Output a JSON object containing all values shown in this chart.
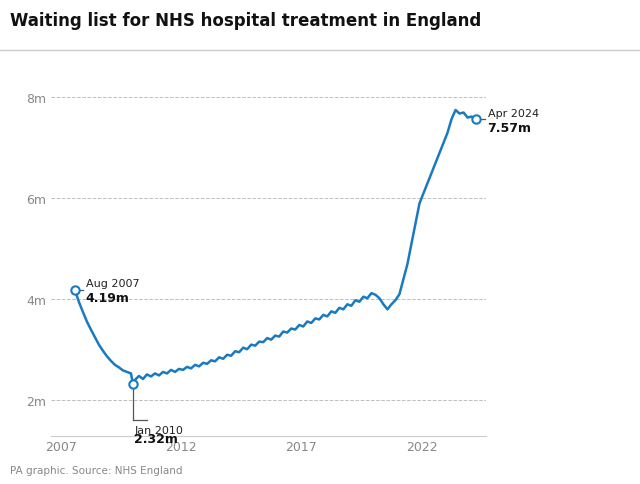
{
  "title": "Waiting list for NHS hospital treatment in England",
  "source": "PA graphic. Source: NHS England",
  "line_color": "#1a7abf",
  "background_color": "#ffffff",
  "grid_color": "#c0c0c0",
  "ylabel_ticks": [
    "2m",
    "4m",
    "6m",
    "8m"
  ],
  "ylabel_values": [
    2000000,
    4000000,
    6000000,
    8000000
  ],
  "ylim": [
    1300000,
    8700000
  ],
  "xlim_start": 2006.6,
  "xlim_end": 2024.7,
  "xticks": [
    2007,
    2012,
    2017,
    2022
  ],
  "ann1_date": "Aug 2007",
  "ann1_val": "4.19m",
  "ann1_x": 2007.583,
  "ann1_y": 4190000,
  "ann2_date": "Jan 2010",
  "ann2_val": "2.32m",
  "ann2_x": 2010.0,
  "ann2_y": 2320000,
  "ann3_date": "Apr 2024",
  "ann3_val": "7.57m",
  "ann3_x": 2024.25,
  "ann3_y": 7570000,
  "data_points": [
    [
      2007.583,
      4190000
    ],
    [
      2007.75,
      3950000
    ],
    [
      2007.917,
      3750000
    ],
    [
      2008.083,
      3560000
    ],
    [
      2008.25,
      3400000
    ],
    [
      2008.417,
      3250000
    ],
    [
      2008.583,
      3100000
    ],
    [
      2008.75,
      2980000
    ],
    [
      2008.917,
      2870000
    ],
    [
      2009.083,
      2780000
    ],
    [
      2009.25,
      2700000
    ],
    [
      2009.417,
      2650000
    ],
    [
      2009.583,
      2590000
    ],
    [
      2009.75,
      2560000
    ],
    [
      2009.917,
      2530000
    ],
    [
      2010.0,
      2320000
    ],
    [
      2010.083,
      2400000
    ],
    [
      2010.25,
      2480000
    ],
    [
      2010.417,
      2420000
    ],
    [
      2010.583,
      2510000
    ],
    [
      2010.75,
      2470000
    ],
    [
      2010.917,
      2530000
    ],
    [
      2011.083,
      2490000
    ],
    [
      2011.25,
      2560000
    ],
    [
      2011.417,
      2530000
    ],
    [
      2011.583,
      2600000
    ],
    [
      2011.75,
      2560000
    ],
    [
      2011.917,
      2620000
    ],
    [
      2012.083,
      2600000
    ],
    [
      2012.25,
      2660000
    ],
    [
      2012.417,
      2630000
    ],
    [
      2012.583,
      2700000
    ],
    [
      2012.75,
      2670000
    ],
    [
      2012.917,
      2740000
    ],
    [
      2013.083,
      2720000
    ],
    [
      2013.25,
      2790000
    ],
    [
      2013.417,
      2770000
    ],
    [
      2013.583,
      2850000
    ],
    [
      2013.75,
      2820000
    ],
    [
      2013.917,
      2900000
    ],
    [
      2014.083,
      2880000
    ],
    [
      2014.25,
      2970000
    ],
    [
      2014.417,
      2950000
    ],
    [
      2014.583,
      3040000
    ],
    [
      2014.75,
      3010000
    ],
    [
      2014.917,
      3100000
    ],
    [
      2015.083,
      3080000
    ],
    [
      2015.25,
      3160000
    ],
    [
      2015.417,
      3150000
    ],
    [
      2015.583,
      3230000
    ],
    [
      2015.75,
      3200000
    ],
    [
      2015.917,
      3280000
    ],
    [
      2016.083,
      3260000
    ],
    [
      2016.25,
      3360000
    ],
    [
      2016.417,
      3340000
    ],
    [
      2016.583,
      3420000
    ],
    [
      2016.75,
      3400000
    ],
    [
      2016.917,
      3490000
    ],
    [
      2017.083,
      3460000
    ],
    [
      2017.25,
      3560000
    ],
    [
      2017.417,
      3530000
    ],
    [
      2017.583,
      3620000
    ],
    [
      2017.75,
      3600000
    ],
    [
      2017.917,
      3690000
    ],
    [
      2018.083,
      3660000
    ],
    [
      2018.25,
      3760000
    ],
    [
      2018.417,
      3730000
    ],
    [
      2018.583,
      3830000
    ],
    [
      2018.75,
      3800000
    ],
    [
      2018.917,
      3900000
    ],
    [
      2019.083,
      3870000
    ],
    [
      2019.25,
      3980000
    ],
    [
      2019.417,
      3950000
    ],
    [
      2019.583,
      4050000
    ],
    [
      2019.75,
      4020000
    ],
    [
      2019.917,
      4120000
    ],
    [
      2020.083,
      4090000
    ],
    [
      2020.25,
      4020000
    ],
    [
      2020.417,
      3900000
    ],
    [
      2020.583,
      3800000
    ],
    [
      2020.75,
      3900000
    ],
    [
      2020.917,
      3980000
    ],
    [
      2021.083,
      4100000
    ],
    [
      2021.25,
      4400000
    ],
    [
      2021.417,
      4700000
    ],
    [
      2021.583,
      5100000
    ],
    [
      2021.75,
      5500000
    ],
    [
      2021.917,
      5900000
    ],
    [
      2022.083,
      6100000
    ],
    [
      2022.25,
      6300000
    ],
    [
      2022.417,
      6500000
    ],
    [
      2022.583,
      6700000
    ],
    [
      2022.75,
      6900000
    ],
    [
      2022.917,
      7100000
    ],
    [
      2023.083,
      7300000
    ],
    [
      2023.25,
      7570000
    ],
    [
      2023.417,
      7750000
    ],
    [
      2023.583,
      7680000
    ],
    [
      2023.75,
      7700000
    ],
    [
      2023.917,
      7600000
    ],
    [
      2024.083,
      7620000
    ],
    [
      2024.25,
      7570000
    ]
  ]
}
